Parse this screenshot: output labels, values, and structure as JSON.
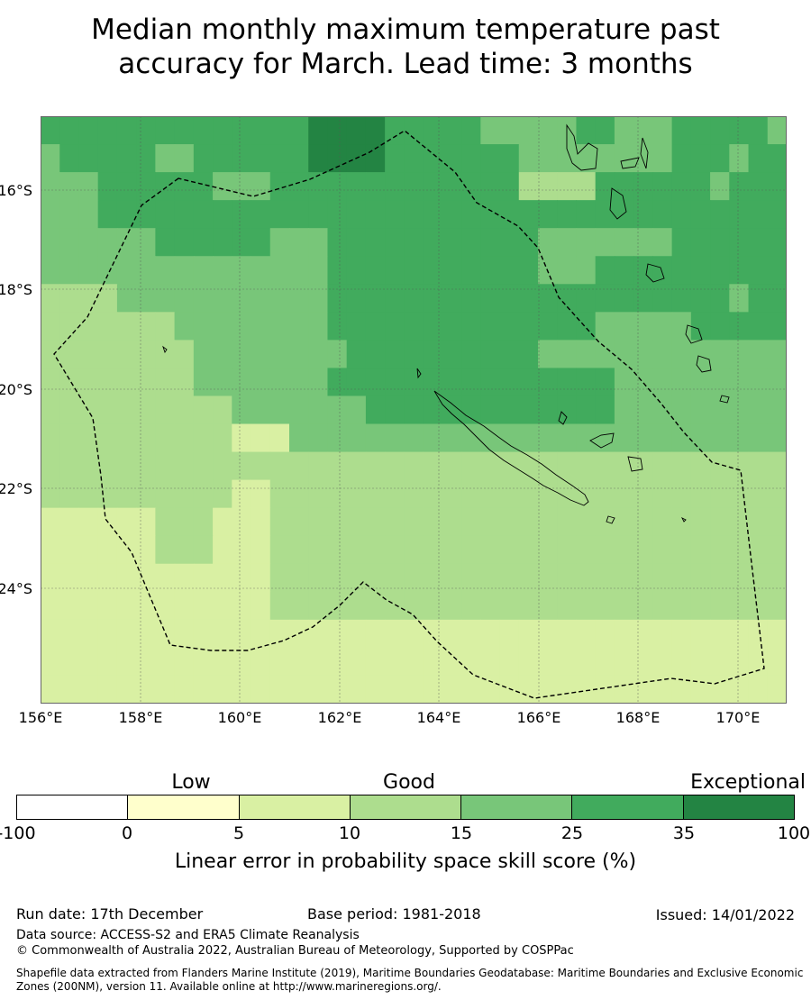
{
  "title_line1": "Median monthly maximum temperature past",
  "title_line2": "accuracy for March. Lead time: 3 months",
  "map": {
    "lat_labels": [
      "16°S",
      "18°S",
      "20°S",
      "22°S",
      "24°S"
    ],
    "lon_labels": [
      "156°E",
      "158°E",
      "160°E",
      "162°E",
      "164°E",
      "166°E",
      "168°E",
      "170°E"
    ]
  },
  "legend": {
    "categories": [
      "Low",
      "Good",
      "Exceptional"
    ],
    "ticks": [
      "-100",
      "0",
      "5",
      "10",
      "15",
      "25",
      "35",
      "100"
    ],
    "colors": [
      "#ffffff",
      "#ffffcc",
      "#d9f0a3",
      "#addd8e",
      "#78c679",
      "#41ab5d",
      "#238443"
    ],
    "label": "Linear error in probability space skill score (%)"
  },
  "grid": {
    "comment_values": "skill class per 0.55deg cell, 0=white(-100..0) 1=(0-5) 2=(5-10) 3=(10-15) 4=(15-25) 5=(25-35) 6=(35-100)",
    "rows": [
      "555555555555556666555554444455444555554",
      "455555445555556666555555544444444555455",
      "444555555444555555555555533335555554555",
      "444555555555555555555555555555555555555",
      "444444555555444555555555554444444555555",
      "444444444444444555555555554445555555555",
      "333344444444444555555555555555555555455",
      "333333344444444555555555555554444455555",
      "333333334444444455555555554444444444444",
      "333333334444444555555555555555444444444",
      "333333333344444445555555555555444444444",
      "333333333322244444444444444444444444444",
      "333333333333333333333333333333333333333",
      "333333333322333333333333333333333333333",
      "222222333222333333333333333333333333333",
      "222222333222333333333333333333333333333",
      "222222222222333333333333333333333333333",
      "222222222222333333333333333333333333333",
      "222222222222222222222222222222222222222",
      "222222222222222222222222222222222222222",
      "222222222222222222222222222222222222222"
    ]
  },
  "footer": {
    "run_date": "Run date: 17th December",
    "base_period": "Base period: 1981-2018",
    "issued": "Issued: 14/01/2022",
    "data_source": "Data source: ACCESS-S2 and ERA5 Climate Reanalysis",
    "copyright": "© Commonwealth of Australia 2022, Australian Bureau of Meteorology, Supported by COSPPac",
    "shapefile": "Shapefile data extracted from Flanders Marine Institute (2019), Maritime Boundaries Geodatabase: Maritime Boundaries and Exclusive Economic Zones (200NM), version 11. Available online at http://www.marineregions.org/."
  }
}
